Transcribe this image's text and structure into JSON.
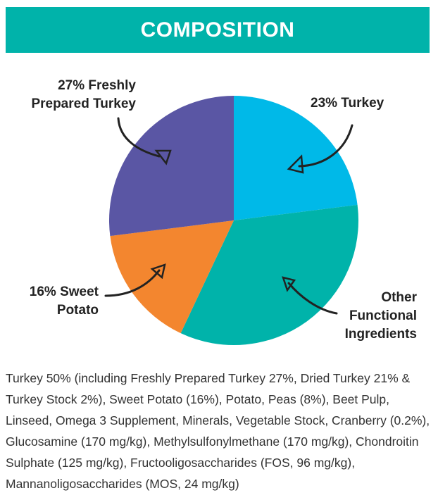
{
  "chart_data": {
    "type": "pie",
    "title": "COMPOSITION",
    "categories": [
      "23% Turkey",
      "Other Functional Ingredients",
      "16% Sweet Potato",
      "27% Freshly Prepared Turkey"
    ],
    "values": [
      23,
      34,
      16,
      27
    ],
    "colors": [
      "#00b9e8",
      "#00b3aa",
      "#f3862f",
      "#5a56a4"
    ],
    "description": "Turkey 50% (including Freshly Prepared Turkey 27%, Dried Turkey 21% & Turkey Stock 2%), Sweet Potato (16%), Potato, Peas (8%), Beet Pulp, Linseed, Omega 3 Supplement, Minerals, Vegetable Stock, Cranberry (0.2%), Glucosamine (170 mg/kg), Methylsulfonylmethane (170 mg/kg), Chondroitin Sulphate (125 mg/kg), Fructooligosaccharides (FOS, 96 mg/kg), Mannanoligosaccharides (MOS, 24 mg/kg)"
  }
}
